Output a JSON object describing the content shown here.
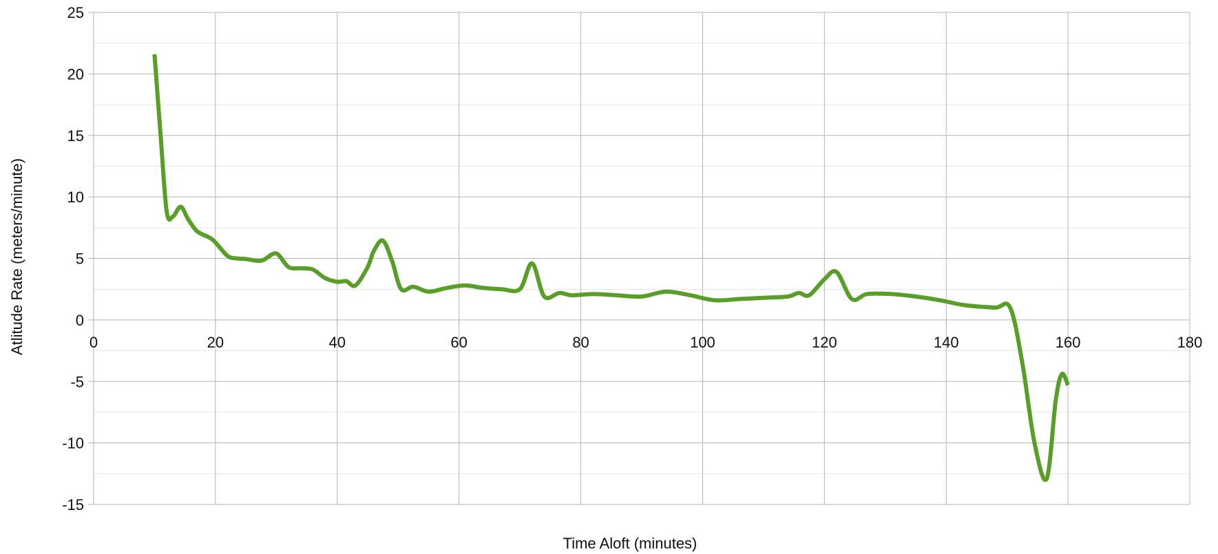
{
  "chart_data": {
    "type": "line",
    "title": "",
    "xlabel": "Time Aloft (minutes)",
    "ylabel": "Atlitude Rate (meters/minute)",
    "xlim": [
      0,
      180
    ],
    "ylim": [
      -15,
      25
    ],
    "x_ticks": [
      0,
      20,
      40,
      60,
      80,
      100,
      120,
      140,
      160,
      180
    ],
    "y_ticks": [
      25,
      20,
      15,
      10,
      5,
      0,
      -5,
      -10,
      -15
    ],
    "x_tick_labels": [
      "0",
      "20",
      "40",
      "60",
      "80",
      "100",
      "120",
      "140",
      "160",
      "180"
    ],
    "y_tick_labels": [
      "25",
      "20",
      "15",
      "10",
      "5",
      "0",
      "-5",
      "-10",
      "-15"
    ],
    "grid": true,
    "minor_grid_y": true,
    "legend": "none",
    "series": [
      {
        "color": "#5a9e2a",
        "smooth": true,
        "x": [
          10,
          11,
          12,
          13,
          14.3,
          15.5,
          17,
          19,
          20,
          22,
          23.5,
          25,
          27,
          28,
          30,
          32,
          34,
          36,
          38,
          40,
          41.5,
          43,
          45,
          46,
          47.5,
          49,
          50.5,
          52.5,
          55,
          58,
          61,
          64,
          67,
          70,
          72,
          74,
          76.5,
          78.5,
          82,
          86,
          90,
          94,
          98,
          102,
          106,
          110,
          114,
          115.8,
          117.5,
          120,
          122,
          124.5,
          127,
          131,
          135,
          139,
          143,
          148,
          150.5,
          152.5,
          154.5,
          156.5,
          158,
          159,
          160
        ],
        "y": [
          21.6,
          15,
          8.8,
          8.4,
          9.2,
          8.2,
          7.2,
          6.7,
          6.3,
          5.2,
          5.0,
          4.95,
          4.8,
          4.9,
          5.4,
          4.3,
          4.2,
          4.1,
          3.4,
          3.1,
          3.15,
          2.8,
          4.3,
          5.6,
          6.45,
          4.8,
          2.5,
          2.7,
          2.3,
          2.6,
          2.8,
          2.6,
          2.5,
          2.5,
          4.6,
          1.9,
          2.2,
          2.0,
          2.1,
          2.0,
          1.9,
          2.3,
          2.0,
          1.6,
          1.7,
          1.8,
          1.9,
          2.2,
          2.0,
          3.3,
          3.9,
          1.7,
          2.1,
          2.1,
          1.9,
          1.6,
          1.2,
          1.0,
          1.0,
          -3.5,
          -10,
          -12.9,
          -6.5,
          -4.4,
          -5.3
        ]
      }
    ]
  }
}
